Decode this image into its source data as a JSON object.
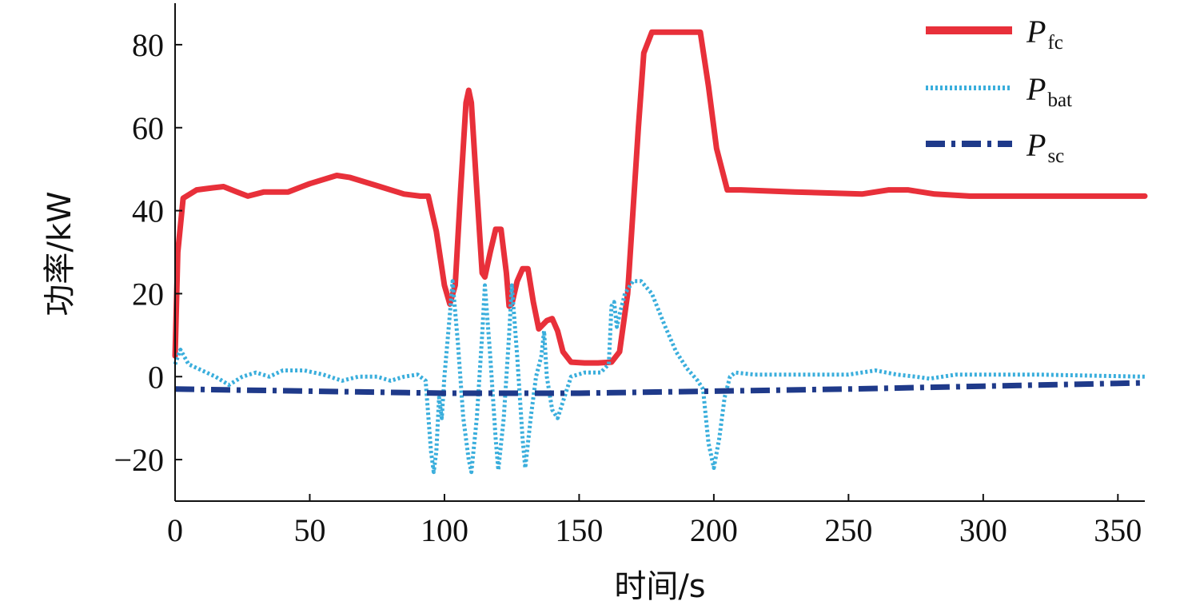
{
  "chart_data": {
    "type": "line",
    "title": "",
    "xlabel": "时间/s",
    "ylabel": "功率/kW",
    "xlim": [
      0,
      360
    ],
    "ylim": [
      -30,
      90
    ],
    "xticks": [
      0,
      50,
      100,
      150,
      200,
      250,
      300,
      350
    ],
    "yticks": [
      -20,
      0,
      20,
      40,
      60,
      80
    ],
    "xtick_labels": [
      "0",
      "50",
      "100",
      "150",
      "200",
      "250",
      "300",
      "350"
    ],
    "ytick_labels": [
      "−20",
      "0",
      "20",
      "40",
      "60",
      "80"
    ],
    "grid": false,
    "legend_position": "top-right",
    "series": [
      {
        "name": "P",
        "subscript": "fc",
        "color": "#e8303a",
        "style": "solid",
        "points": [
          [
            0,
            5
          ],
          [
            1,
            30
          ],
          [
            3,
            43
          ],
          [
            8,
            45
          ],
          [
            14,
            45.5
          ],
          [
            18,
            45.8
          ],
          [
            23,
            44.5
          ],
          [
            27,
            43.5
          ],
          [
            33,
            44.5
          ],
          [
            42,
            44.5
          ],
          [
            50,
            46.5
          ],
          [
            60,
            48.5
          ],
          [
            65,
            48
          ],
          [
            75,
            46
          ],
          [
            85,
            44
          ],
          [
            91,
            43.5
          ],
          [
            94,
            43.5
          ],
          [
            97,
            35
          ],
          [
            100,
            22
          ],
          [
            102,
            17.5
          ],
          [
            104,
            22
          ],
          [
            106,
            45
          ],
          [
            108,
            66
          ],
          [
            109,
            69
          ],
          [
            110,
            66
          ],
          [
            112,
            45
          ],
          [
            114,
            25
          ],
          [
            115,
            24
          ],
          [
            117,
            30
          ],
          [
            119,
            35.5
          ],
          [
            121,
            35.5
          ],
          [
            123,
            25
          ],
          [
            124,
            17
          ],
          [
            125,
            17.5
          ],
          [
            127,
            23
          ],
          [
            129,
            26
          ],
          [
            131,
            26
          ],
          [
            133,
            18
          ],
          [
            135,
            11.5
          ],
          [
            138,
            13.5
          ],
          [
            140,
            14
          ],
          [
            142,
            11
          ],
          [
            144,
            6
          ],
          [
            147,
            3.5
          ],
          [
            152,
            3.3
          ],
          [
            157,
            3.3
          ],
          [
            162,
            3.5
          ],
          [
            165,
            6
          ],
          [
            168,
            20
          ],
          [
            170,
            40
          ],
          [
            172,
            60
          ],
          [
            174,
            78
          ],
          [
            177,
            83
          ],
          [
            182,
            83
          ],
          [
            188,
            83
          ],
          [
            195,
            83
          ],
          [
            198,
            70
          ],
          [
            201,
            55
          ],
          [
            205,
            45
          ],
          [
            210,
            45
          ],
          [
            230,
            44.5
          ],
          [
            255,
            44
          ],
          [
            265,
            45
          ],
          [
            272,
            45
          ],
          [
            282,
            44
          ],
          [
            295,
            43.5
          ],
          [
            330,
            43.5
          ],
          [
            360,
            43.5
          ]
        ]
      },
      {
        "name": "P",
        "subscript": "bat",
        "color": "#3aaedc",
        "style": "dotted",
        "points": [
          [
            0,
            3
          ],
          [
            2,
            6.5
          ],
          [
            5,
            3
          ],
          [
            10,
            1.5
          ],
          [
            15,
            0
          ],
          [
            20,
            -2
          ],
          [
            25,
            0
          ],
          [
            30,
            1
          ],
          [
            35,
            0
          ],
          [
            40,
            1.5
          ],
          [
            48,
            1.5
          ],
          [
            55,
            0.5
          ],
          [
            62,
            -1
          ],
          [
            68,
            0
          ],
          [
            75,
            0
          ],
          [
            80,
            -1
          ],
          [
            85,
            0
          ],
          [
            90,
            0.5
          ],
          [
            93,
            -1
          ],
          [
            95,
            -18
          ],
          [
            96,
            -23
          ],
          [
            97,
            -18
          ],
          [
            98,
            -5
          ],
          [
            99,
            -10
          ],
          [
            100,
            0
          ],
          [
            102,
            15
          ],
          [
            103,
            23
          ],
          [
            105,
            8
          ],
          [
            107,
            -10
          ],
          [
            109,
            -20
          ],
          [
            110,
            -23
          ],
          [
            112,
            -10
          ],
          [
            114,
            10
          ],
          [
            115,
            22
          ],
          [
            117,
            5
          ],
          [
            119,
            -15
          ],
          [
            120,
            -22.5
          ],
          [
            122,
            -10
          ],
          [
            124,
            10
          ],
          [
            125,
            22
          ],
          [
            127,
            5
          ],
          [
            129,
            -15
          ],
          [
            130,
            -22
          ],
          [
            132,
            -10
          ],
          [
            134,
            0
          ],
          [
            136,
            5
          ],
          [
            137,
            11
          ],
          [
            138,
            0
          ],
          [
            140,
            -8
          ],
          [
            142,
            -10
          ],
          [
            144,
            -6
          ],
          [
            147,
            0
          ],
          [
            152,
            1
          ],
          [
            158,
            1
          ],
          [
            161,
            3
          ],
          [
            162,
            17
          ],
          [
            163,
            18
          ],
          [
            164,
            12
          ],
          [
            165,
            15
          ],
          [
            167,
            20
          ],
          [
            170,
            23
          ],
          [
            173,
            23
          ],
          [
            177,
            20
          ],
          [
            182,
            12
          ],
          [
            186,
            6
          ],
          [
            190,
            2
          ],
          [
            194,
            -1
          ],
          [
            196,
            -3
          ],
          [
            198,
            -16
          ],
          [
            200,
            -22
          ],
          [
            202,
            -15
          ],
          [
            204,
            -5
          ],
          [
            206,
            0
          ],
          [
            208,
            1
          ],
          [
            215,
            0.5
          ],
          [
            230,
            0.5
          ],
          [
            250,
            0.5
          ],
          [
            260,
            1.5
          ],
          [
            268,
            0.5
          ],
          [
            275,
            0
          ],
          [
            280,
            -0.5
          ],
          [
            290,
            0.5
          ],
          [
            320,
            0.5
          ],
          [
            360,
            0
          ]
        ]
      },
      {
        "name": "P",
        "subscript": "sc",
        "color": "#1f3a8a",
        "style": "dashdot",
        "points": [
          [
            0,
            -3
          ],
          [
            50,
            -3.5
          ],
          [
            100,
            -4
          ],
          [
            150,
            -4
          ],
          [
            200,
            -3.5
          ],
          [
            250,
            -3
          ],
          [
            300,
            -2.3
          ],
          [
            360,
            -1.5
          ]
        ]
      }
    ]
  }
}
